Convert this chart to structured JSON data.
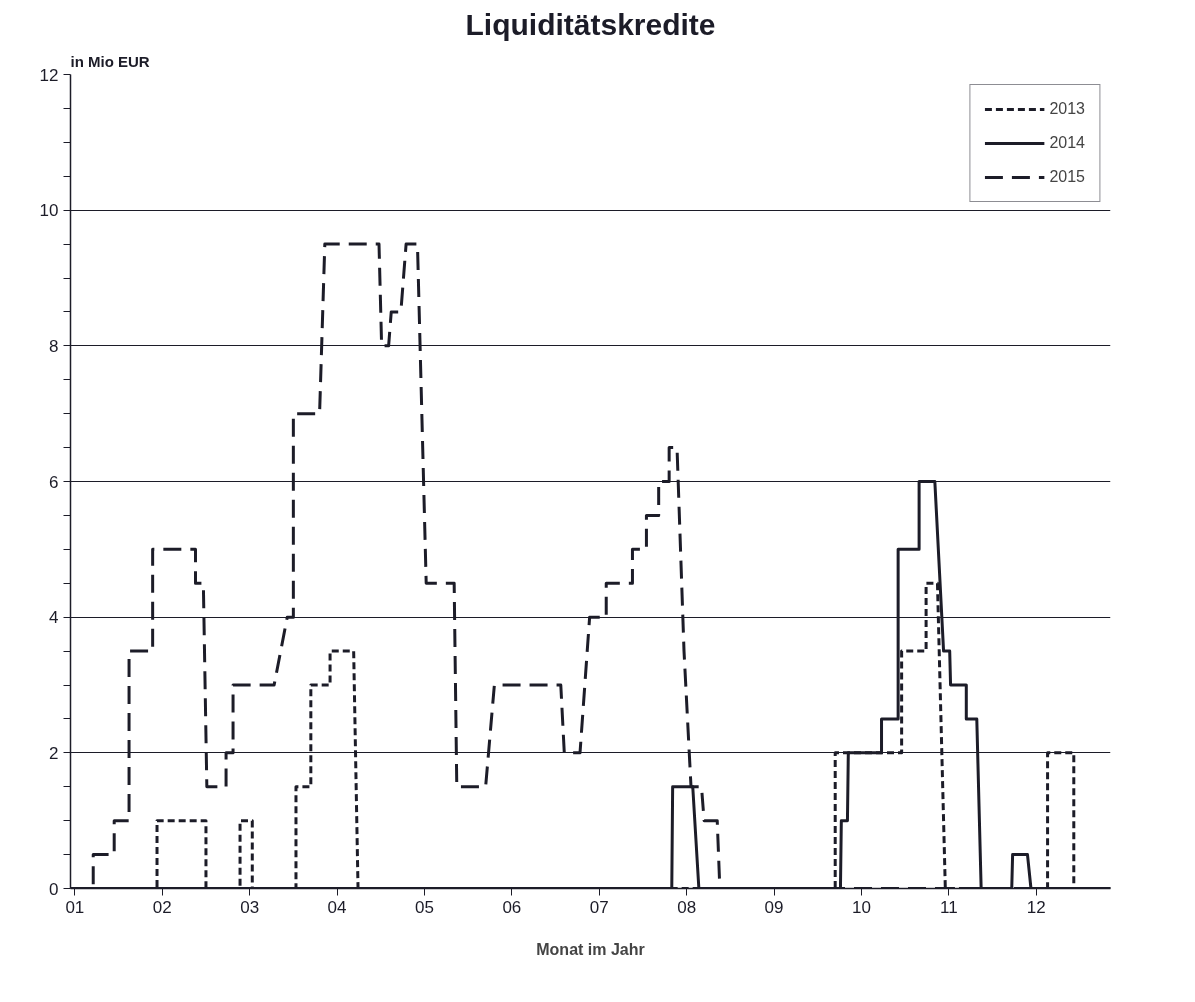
{
  "chart_data": {
    "type": "line",
    "title": "Liquiditätskredite",
    "ylabel": "in Mio EUR",
    "xlabel": "Monat im Jahr",
    "xlim": [
      0.95,
      12.85
    ],
    "xticks": [
      {
        "value": 1,
        "label": "01"
      },
      {
        "value": 2,
        "label": "02"
      },
      {
        "value": 3,
        "label": "03"
      },
      {
        "value": 4,
        "label": "04"
      },
      {
        "value": 5,
        "label": "05"
      },
      {
        "value": 6,
        "label": "06"
      },
      {
        "value": 7,
        "label": "07"
      },
      {
        "value": 8,
        "label": "08"
      },
      {
        "value": 9,
        "label": "09"
      },
      {
        "value": 10,
        "label": "10"
      },
      {
        "value": 11,
        "label": "11"
      },
      {
        "value": 12,
        "label": "12"
      }
    ],
    "ylim": [
      0,
      12
    ],
    "yticks": [
      0,
      {
        "value": 0.5,
        "label": null
      },
      {
        "value": 1,
        "label": null
      },
      {
        "value": 1.5,
        "label": null
      },
      2,
      {
        "value": 2.5,
        "label": null
      },
      {
        "value": 3,
        "label": null
      },
      {
        "value": 3.5,
        "label": null
      },
      4,
      {
        "value": 4.5,
        "label": null
      },
      {
        "value": 5,
        "label": null
      },
      {
        "value": 5.5,
        "label": null
      },
      6,
      {
        "value": 6.5,
        "label": null
      },
      {
        "value": 7,
        "label": null
      },
      {
        "value": 7.5,
        "label": null
      },
      8,
      {
        "value": 8.5,
        "label": null
      },
      {
        "value": 9,
        "label": null
      },
      {
        "value": 9.5,
        "label": null
      },
      10,
      {
        "value": 10.5,
        "label": null
      },
      {
        "value": 11,
        "label": null
      },
      {
        "value": 11.5,
        "label": null
      },
      12
    ],
    "grid": "y",
    "legend": "top right",
    "marker": "none",
    "series": [
      {
        "name": "2013",
        "color": "#1c1c28",
        "line_style": "dotted",
        "x": [
          0.95,
          1.94,
          1.94,
          2.5,
          2.5,
          2.89,
          2.89,
          3.03,
          3.03,
          3.53,
          3.53,
          3.7,
          3.7,
          3.92,
          3.92,
          4.19,
          4.24,
          9.7,
          9.7,
          10.46,
          10.46,
          10.74,
          10.74,
          10.87,
          10.96,
          12.13,
          12.13,
          12.43,
          12.43,
          12.85
        ],
        "values": [
          0,
          0,
          1,
          1,
          0,
          0,
          1,
          1,
          0,
          0,
          1.5,
          1.5,
          3,
          3,
          3.5,
          3.5,
          0,
          0,
          2,
          2,
          3.5,
          3.5,
          4.5,
          4.5,
          0,
          0,
          2,
          2,
          0,
          0
        ]
      },
      {
        "name": "2014",
        "color": "#1c1c28",
        "line_style": "solid",
        "x": [
          0.95,
          7.83,
          7.84,
          8.07,
          8.14,
          9.76,
          9.77,
          9.84,
          9.85,
          10.23,
          10.23,
          10.42,
          10.42,
          10.66,
          10.66,
          10.84,
          10.94,
          11.01,
          11.02,
          11.2,
          11.2,
          11.32,
          11.37,
          11.72,
          11.73,
          11.9,
          11.94,
          12.85
        ],
        "values": [
          0,
          0,
          1.5,
          1.5,
          0,
          0,
          1,
          1,
          2,
          2,
          2.5,
          2.5,
          5,
          5,
          6,
          6,
          3.5,
          3.5,
          3,
          3,
          2.5,
          2.5,
          0,
          0,
          0.5,
          0.5,
          0,
          0
        ]
      },
      {
        "name": "2015",
        "color": "#1c1c28",
        "line_style": "dashed",
        "x": [
          0.95,
          1.21,
          1.21,
          1.45,
          1.45,
          1.62,
          1.62,
          1.89,
          1.89,
          2.38,
          2.38,
          2.47,
          2.51,
          2.73,
          2.73,
          2.81,
          2.81,
          3.28,
          3.43,
          3.5,
          3.5,
          3.8,
          3.86,
          4.48,
          4.51,
          4.59,
          4.62,
          4.73,
          4.79,
          4.92,
          5.02,
          5.34,
          5.37,
          5.7,
          5.8,
          6.56,
          6.6,
          6.78,
          6.89,
          7.08,
          7.08,
          7.38,
          7.38,
          7.54,
          7.54,
          7.68,
          7.68,
          7.8,
          7.8,
          7.89,
          7.97,
          8.05,
          8.17,
          8.2,
          8.35,
          8.38,
          12.85
        ],
        "values": [
          0,
          0,
          0.5,
          0.5,
          1,
          1,
          3.5,
          3.5,
          5,
          5,
          4.5,
          4.5,
          1.5,
          1.5,
          2,
          2,
          3,
          3,
          4,
          4,
          7,
          7,
          9.5,
          9.5,
          8,
          8,
          8.5,
          8.5,
          9.5,
          9.5,
          4.5,
          4.5,
          1.5,
          1.5,
          3,
          3,
          2,
          2,
          4,
          4,
          4.5,
          4.5,
          5,
          5,
          5.5,
          5.5,
          6,
          6,
          6.5,
          6.5,
          3.5,
          1.5,
          1.5,
          1,
          1,
          0,
          0
        ]
      }
    ]
  }
}
